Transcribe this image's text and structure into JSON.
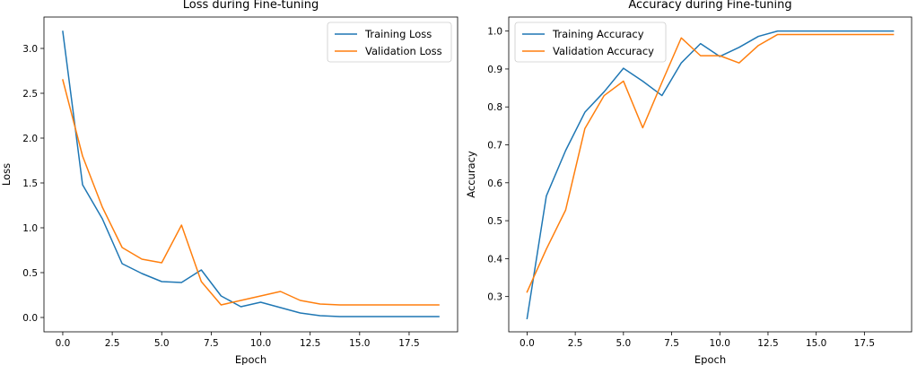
{
  "chart_data": [
    {
      "type": "line",
      "title": "Loss during Fine-tuning",
      "xlabel": "Epoch",
      "ylabel": "Loss",
      "xlim": [
        -0.95,
        19.95
      ],
      "ylim": [
        -0.16,
        3.35
      ],
      "xticks": [
        0,
        2.5,
        5,
        7.5,
        10,
        12.5,
        15,
        17.5
      ],
      "xtick_labels": [
        "0.0",
        "2.5",
        "5.0",
        "7.5",
        "10.0",
        "12.5",
        "15.0",
        "17.5"
      ],
      "yticks": [
        0,
        0.5,
        1,
        1.5,
        2,
        2.5,
        3
      ],
      "ytick_labels": [
        "0.0",
        "0.5",
        "1.0",
        "1.5",
        "2.0",
        "2.5",
        "3.0"
      ],
      "grid": false,
      "legend_position": "top-right",
      "x": [
        0,
        1,
        2,
        3,
        4,
        5,
        6,
        7,
        8,
        9,
        10,
        11,
        12,
        13,
        14,
        15,
        16,
        17,
        18,
        19
      ],
      "series": [
        {
          "name": "Training Loss",
          "color": "#1f77b4",
          "values": [
            3.19,
            1.48,
            1.1,
            0.6,
            0.49,
            0.4,
            0.39,
            0.53,
            0.24,
            0.12,
            0.17,
            0.11,
            0.05,
            0.02,
            0.01,
            0.01,
            0.01,
            0.01,
            0.01,
            0.01
          ]
        },
        {
          "name": "Validation Loss",
          "color": "#ff7f0e",
          "values": [
            2.65,
            1.8,
            1.23,
            0.78,
            0.65,
            0.61,
            1.03,
            0.4,
            0.14,
            0.19,
            0.24,
            0.29,
            0.19,
            0.15,
            0.14,
            0.14,
            0.14,
            0.14,
            0.14,
            0.14
          ]
        }
      ]
    },
    {
      "type": "line",
      "title": "Accuracy during Fine-tuning",
      "xlabel": "Epoch",
      "ylabel": "Accuracy",
      "xlim": [
        -0.95,
        19.95
      ],
      "ylim": [
        0.207,
        1.037
      ],
      "xticks": [
        0,
        2.5,
        5,
        7.5,
        10,
        12.5,
        15,
        17.5
      ],
      "xtick_labels": [
        "0.0",
        "2.5",
        "5.0",
        "7.5",
        "10.0",
        "12.5",
        "15.0",
        "17.5"
      ],
      "yticks": [
        0.3,
        0.4,
        0.5,
        0.6,
        0.7,
        0.8,
        0.9,
        1.0
      ],
      "ytick_labels": [
        "0.3",
        "0.4",
        "0.5",
        "0.6",
        "0.7",
        "0.8",
        "0.9",
        "1.0"
      ],
      "grid": false,
      "legend_position": "top-left",
      "x": [
        0,
        1,
        2,
        3,
        4,
        5,
        6,
        7,
        8,
        9,
        10,
        11,
        12,
        13,
        14,
        15,
        16,
        17,
        18,
        19
      ],
      "series": [
        {
          "name": "Training Accuracy",
          "color": "#1f77b4",
          "values": [
            0.242,
            0.565,
            0.685,
            0.786,
            0.84,
            0.902,
            0.868,
            0.83,
            0.916,
            0.967,
            0.933,
            0.957,
            0.986,
            1.0,
            1.0,
            1.0,
            1.0,
            1.0,
            1.0,
            1.0
          ]
        },
        {
          "name": "Validation Accuracy",
          "color": "#ff7f0e",
          "values": [
            0.312,
            0.425,
            0.528,
            0.743,
            0.83,
            0.868,
            0.745,
            0.865,
            0.982,
            0.935,
            0.935,
            0.916,
            0.962,
            0.991,
            0.991,
            0.991,
            0.991,
            0.991,
            0.991,
            0.991
          ]
        }
      ]
    }
  ]
}
